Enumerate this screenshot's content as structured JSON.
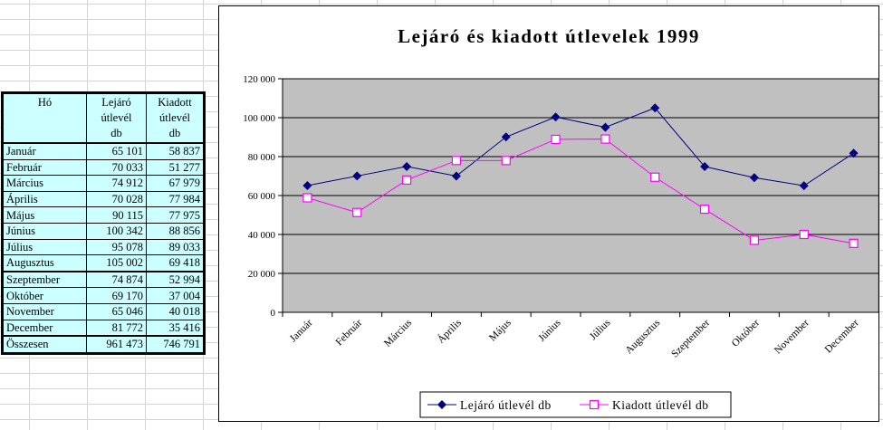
{
  "table": {
    "headers": [
      "Hó",
      "Lejáró\nútlevél\ndb",
      "Kiadott\nútlevél\ndb"
    ],
    "rows": [
      [
        "Január",
        "65 101",
        "58 837"
      ],
      [
        "Február",
        "70 033",
        "51 277"
      ],
      [
        "Március",
        "74 912",
        "67 979"
      ],
      [
        "Április",
        "70 028",
        "77 984"
      ],
      [
        "Május",
        "90 115",
        "77 975"
      ],
      [
        "Június",
        "100 342",
        "88 856"
      ],
      [
        "Július",
        "95 078",
        "89 033"
      ],
      [
        "Augusztus",
        "105 002",
        "69 418"
      ],
      [
        "Szeptember",
        "74 874",
        "52 994"
      ],
      [
        "Október",
        "69 170",
        "37 004"
      ],
      [
        "November",
        "65 046",
        "40 018"
      ],
      [
        "December",
        "81 772",
        "35 416"
      ],
      [
        "Összesen",
        "961 473",
        "746 791"
      ]
    ]
  },
  "chart_data": {
    "type": "line",
    "title": "Lejáró és kiadott útlevelek 1999",
    "xlabel": "",
    "ylabel": "",
    "categories": [
      "Január",
      "Február",
      "Március",
      "Április",
      "Május",
      "Június",
      "Július",
      "Augusztus",
      "Szeptember",
      "Október",
      "November",
      "December"
    ],
    "ylim": [
      0,
      120000
    ],
    "yticks": [
      0,
      20000,
      40000,
      60000,
      80000,
      100000,
      120000
    ],
    "ytick_labels": [
      "0",
      "20 000",
      "40 000",
      "60 000",
      "80 000",
      "100 000",
      "120 000"
    ],
    "grid": true,
    "legend_position": "bottom",
    "plot_background": "#c0c0c0",
    "series": [
      {
        "name": "Lejáró útlevél db",
        "color": "#000080",
        "marker": "diamond",
        "values": [
          65101,
          70033,
          74912,
          70028,
          90115,
          100342,
          95078,
          105002,
          74874,
          69170,
          65046,
          81772
        ]
      },
      {
        "name": "Kiadott útlevél db",
        "color": "#ff00ff",
        "marker": "square",
        "values": [
          58837,
          51277,
          67979,
          77984,
          77975,
          88856,
          89033,
          69418,
          52994,
          37004,
          40018,
          35416
        ]
      }
    ]
  }
}
